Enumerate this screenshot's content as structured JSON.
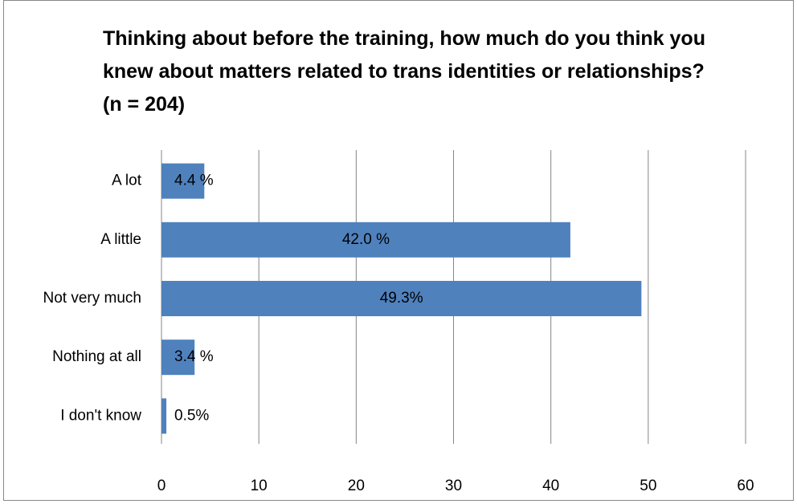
{
  "chart_data": {
    "type": "bar",
    "orientation": "horizontal",
    "title": "Thinking about before the training, how much do you think you knew about matters related to trans identities or relationships? (n = 204)",
    "categories": [
      "A lot",
      "A little",
      "Not very much",
      "Nothing at all",
      "I don't know"
    ],
    "values": [
      4.4,
      42.0,
      49.3,
      3.4,
      0.5
    ],
    "value_labels": [
      "4.4 %",
      "42.0 %",
      "49.3%",
      "3.4 %",
      "0.5%"
    ],
    "color": "#4f81bd",
    "xlim": [
      0,
      60
    ],
    "xticks": [
      0,
      10,
      20,
      30,
      40,
      50,
      60
    ],
    "grid": true
  }
}
